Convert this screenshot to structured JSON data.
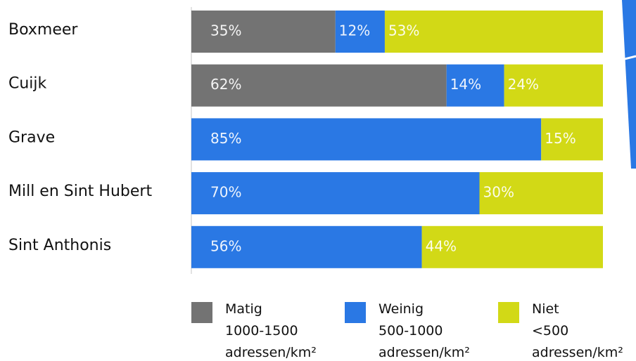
{
  "chart_data": {
    "type": "stacked-bar-horizontal",
    "categories": [
      "Boxmeer",
      "Cuijk",
      "Grave",
      "Mill en Sint Hubert",
      "Sint Anthonis"
    ],
    "xlim": [
      0,
      100
    ],
    "series": [
      {
        "name": "Matig 1000-1500 adressen/km²",
        "color": "#737373",
        "values": [
          35,
          62,
          null,
          null,
          null
        ],
        "value_labels": [
          "35%",
          "62%",
          null,
          null,
          null
        ]
      },
      {
        "name": "Weinig 500-1000 adressen/km²",
        "color": "#2a78e4",
        "values": [
          12,
          14,
          85,
          70,
          56
        ],
        "value_labels": [
          "12%",
          "14%",
          "85%",
          "70%",
          "56%"
        ]
      },
      {
        "name": "Niet <500 adressen/km²",
        "color": "#d2d916",
        "values": [
          53,
          24,
          15,
          30,
          44
        ],
        "value_labels": [
          "53%",
          "24%",
          "15%",
          "30%",
          "44%"
        ]
      }
    ]
  }
}
